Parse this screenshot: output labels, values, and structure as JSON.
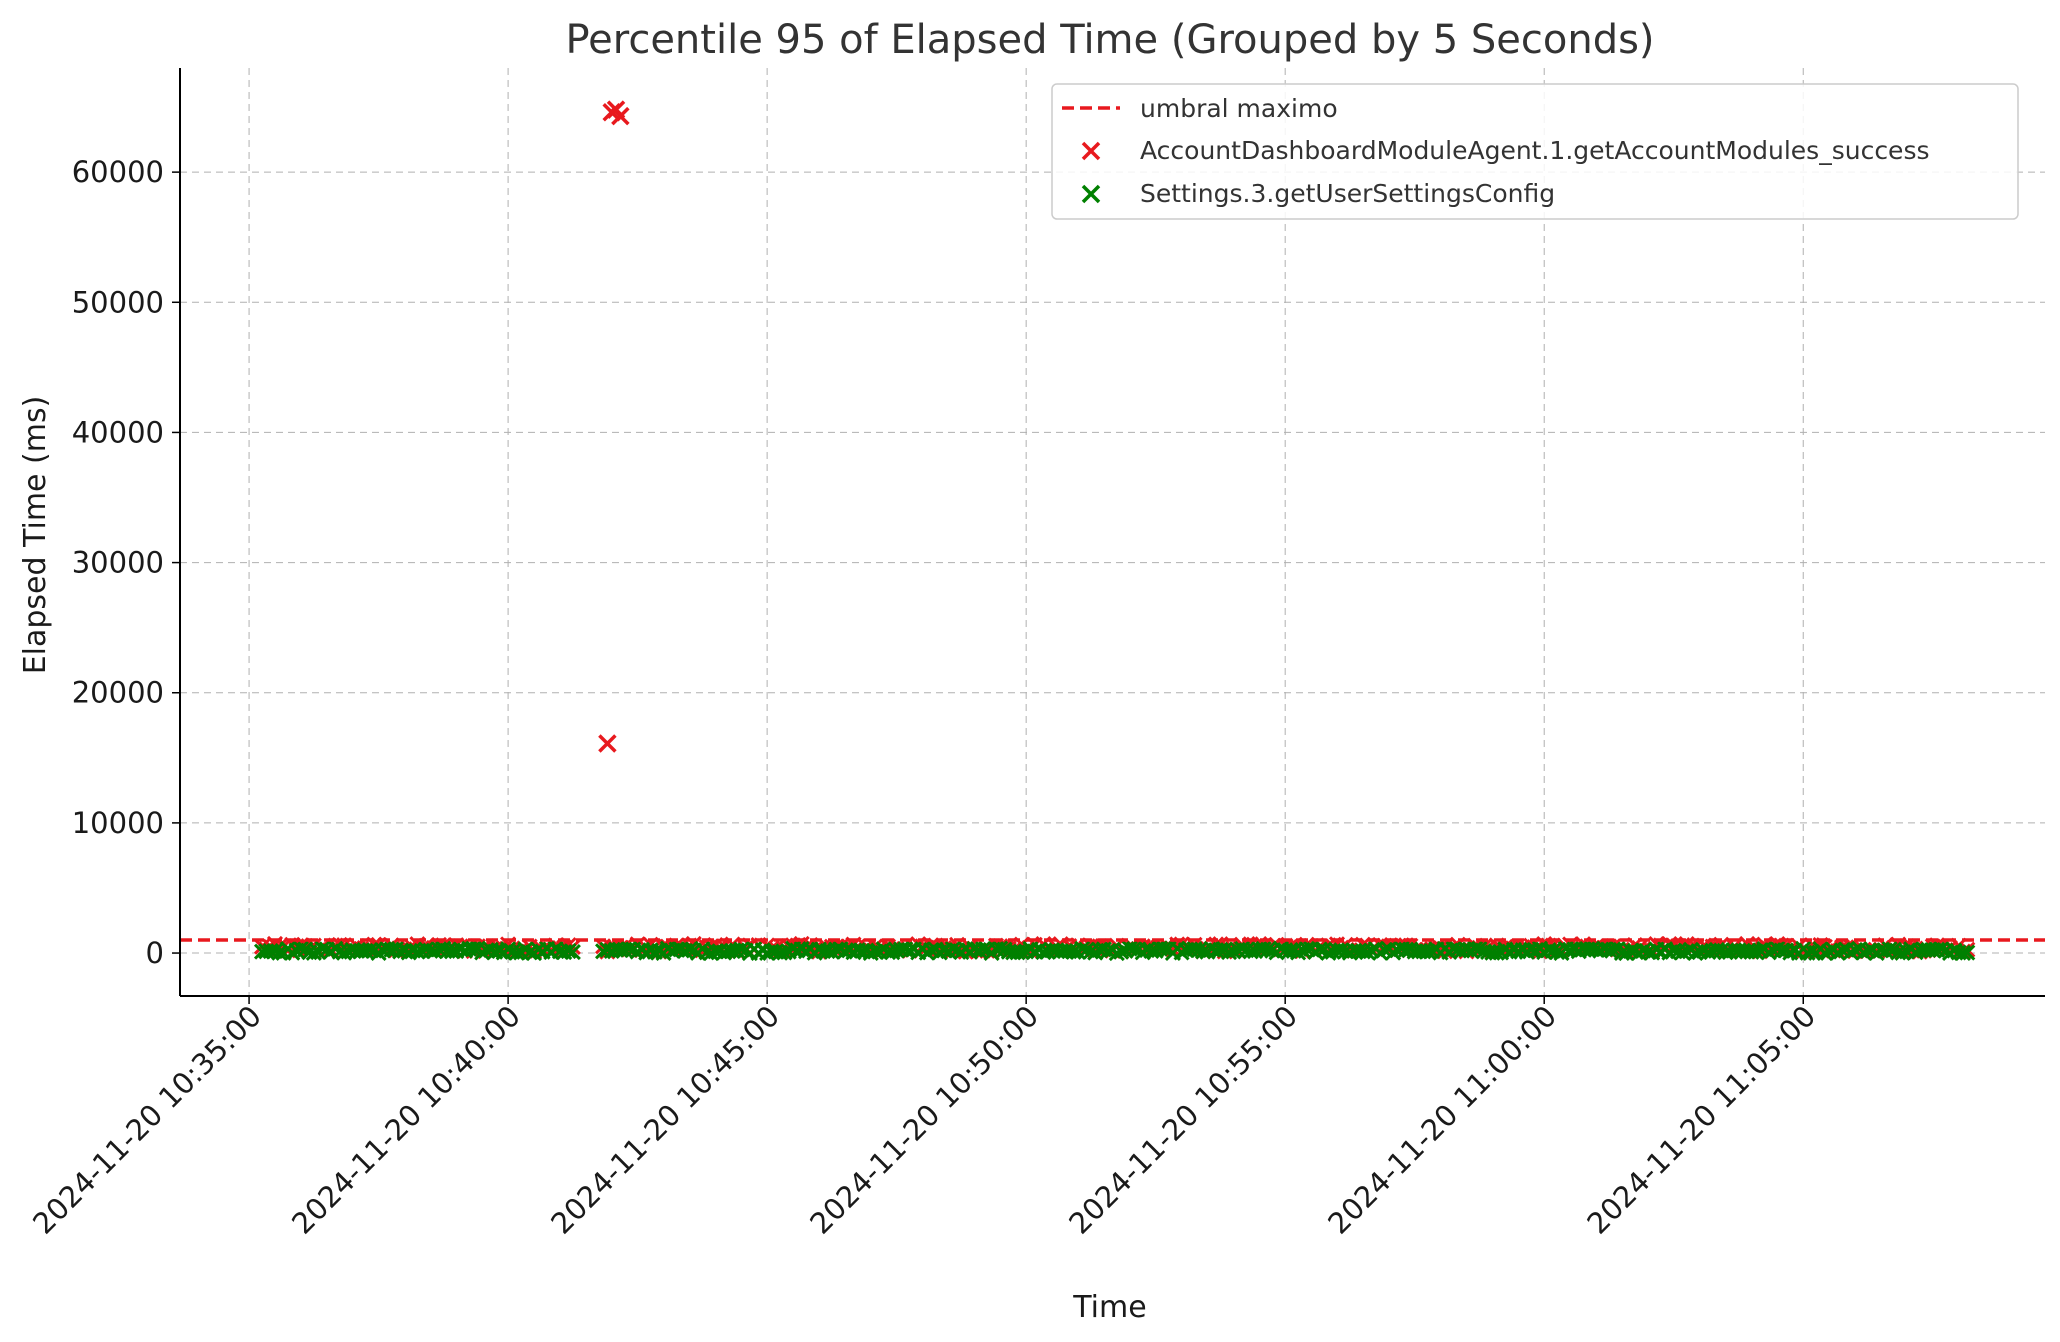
{
  "chart_data": {
    "type": "scatter",
    "title": "Percentile 95 of Elapsed Time (Grouped by 5 Seconds)",
    "xlabel": "Time",
    "ylabel": "Elapsed Time (ms)",
    "x_range": [
      "2024-11-20 10:33:40",
      "2024-11-20 11:09:40"
    ],
    "ylim": [
      -3300,
      68000
    ],
    "x_ticks": [
      "2024-11-20 10:35:00",
      "2024-11-20 10:40:00",
      "2024-11-20 10:45:00",
      "2024-11-20 10:50:00",
      "2024-11-20 10:55:00",
      "2024-11-20 11:00:00",
      "2024-11-20 11:05:00"
    ],
    "y_ticks": [
      0,
      10000,
      20000,
      30000,
      40000,
      50000,
      60000
    ],
    "grid": true,
    "legend_position": "top-right",
    "threshold": {
      "name": "umbral maximo",
      "value": 1000,
      "color": "#e8191e",
      "style": "dashed"
    },
    "series": [
      {
        "name": "AccountDashboardModuleAgent.1.getAccountModules_success",
        "color": "#e8191e",
        "marker": "x",
        "outliers": [
          {
            "x": "2024-11-20 10:41:55",
            "y": 16100
          },
          {
            "x": "2024-11-20 10:42:00",
            "y": 64600
          },
          {
            "x": "2024-11-20 10:42:05",
            "y": 64800
          },
          {
            "x": "2024-11-20 10:42:10",
            "y": 64300
          }
        ],
        "baseline_segments": [
          {
            "start": "2024-11-20 10:35:15",
            "end": "2024-11-20 10:41:15",
            "min": 100,
            "max": 700
          },
          {
            "start": "2024-11-20 10:41:50",
            "end": "2024-11-20 11:08:10",
            "min": 100,
            "max": 700
          }
        ]
      },
      {
        "name": "Settings.3.getUserSettingsConfig",
        "color": "#008000",
        "marker": "x",
        "baseline_segments": [
          {
            "start": "2024-11-20 10:35:15",
            "end": "2024-11-20 10:41:15",
            "min": 0,
            "max": 350
          },
          {
            "start": "2024-11-20 10:41:50",
            "end": "2024-11-20 11:08:10",
            "min": 0,
            "max": 350
          }
        ]
      }
    ]
  }
}
